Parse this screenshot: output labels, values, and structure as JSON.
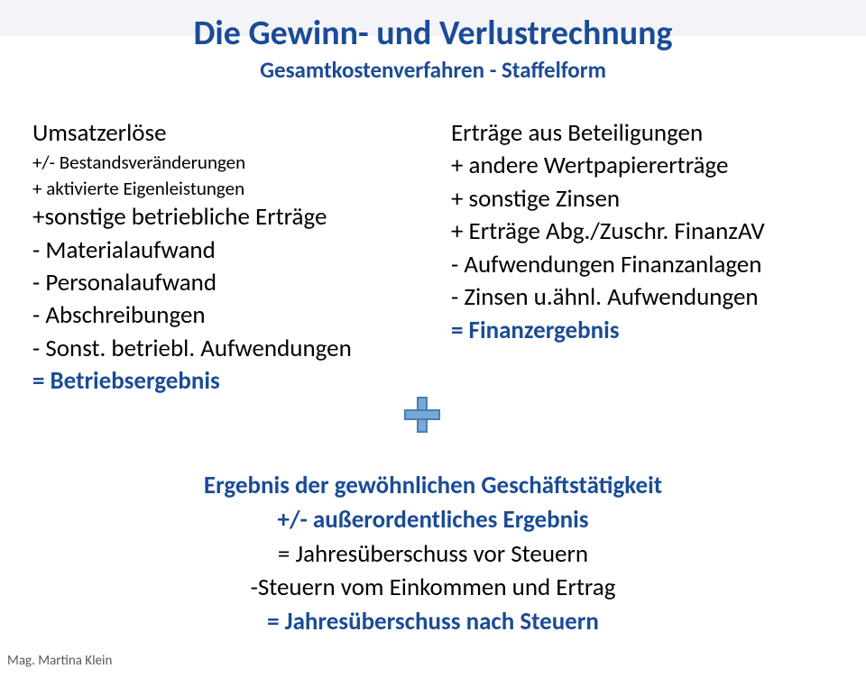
{
  "title": {
    "text": "Die Gewinn- und Verlustrechnung",
    "fontsize": 38,
    "color": "#1a4c96"
  },
  "subtitle": {
    "text": "Gesamtkostenverfahren - Staffelform",
    "fontsize": 25,
    "color": "#1a4c96"
  },
  "leftCol": {
    "l0": "Umsatzerlöse",
    "l1": "+/- Bestandsveränderungen",
    "l2": "+ aktivierte Eigenleistungen",
    "l3": "+sonstige betriebliche Erträge",
    "l4": "-  Materialaufwand",
    "l5": "-   Personalaufwand",
    "l6": "-   Abschreibungen",
    "l7": "-  Sonst. betriebl. Aufwendungen",
    "l8": "= Betriebsergebnis"
  },
  "rightCol": {
    "r0": "Erträge  aus Beteiligungen",
    "r1": "+ andere Wertpapiererträge",
    "r2": "+ sonstige Zinsen",
    "r3": "+ Erträge Abg./Zuschr. FinanzAV",
    "r4": "- Aufwendungen Finanzanlagen",
    "r5": "- Zinsen u.ähnl. Aufwendungen",
    "r6": "= Finanzergebnis"
  },
  "bottom": {
    "b0": "Ergebnis der gewöhnlichen Geschäftstätigkeit",
    "b1": "+/- außerordentliches Ergebnis",
    "b2": "= Jahresüberschuss vor Steuern",
    "b3": "-Steuern vom Einkommen und Ertrag",
    "b4": "= Jahresüberschuss nach Steuern"
  },
  "footer": "Mag. Martina  Klein",
  "style": {
    "blue": "#1a4c96",
    "black": "#000000",
    "gray": "#595959",
    "bodyFont": 27,
    "smallFont": 21,
    "bottomFont": 27
  }
}
